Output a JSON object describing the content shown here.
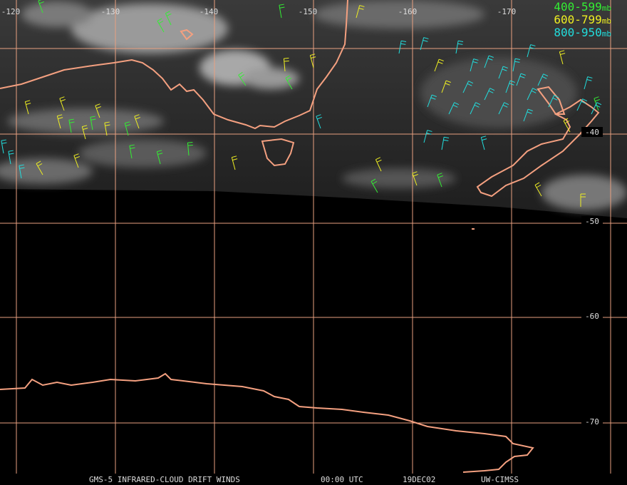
{
  "map": {
    "lon_labels": [
      "-120",
      "-130",
      "-140",
      "-150",
      "-160",
      "-170"
    ],
    "lat_labels": [
      "-40",
      "-50",
      "-60",
      "-70"
    ],
    "legend": [
      {
        "range": "400-599",
        "unit": "mb",
        "color": "#33ee33"
      },
      {
        "range": "600-799",
        "unit": "mb",
        "color": "#eeee22"
      },
      {
        "range": "800-950",
        "unit": "mb",
        "color": "#22dddd"
      }
    ]
  },
  "footer": {
    "product": "GMS-5 INFRARED-CLOUD DRIFT WINDS",
    "time": "00:00 UTC",
    "date": "19DEC02",
    "source": "UW-CIMSS"
  }
}
